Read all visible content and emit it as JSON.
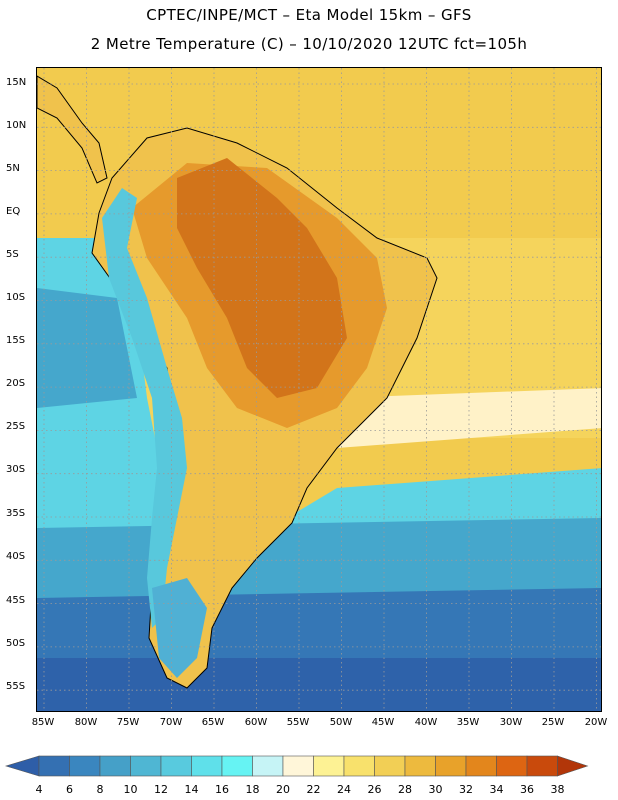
{
  "header": {
    "line1": "CPTEC/INPE/MCT –  Eta Model 15km – GFS",
    "line2": "2 Metre Temperature (C) – 10/10/2020 12UTC fct=105h"
  },
  "axes": {
    "lat_labels": [
      "15N",
      "10N",
      "5N",
      "EQ",
      "5S",
      "10S",
      "15S",
      "20S",
      "25S",
      "30S",
      "35S",
      "40S",
      "45S",
      "50S",
      "55S"
    ],
    "lon_labels": [
      "85W",
      "80W",
      "75W",
      "70W",
      "65W",
      "60W",
      "55W",
      "50W",
      "45W",
      "40W",
      "35W",
      "30W",
      "25W",
      "20W"
    ]
  },
  "colorbar": {
    "labels": [
      "4",
      "6",
      "8",
      "10",
      "12",
      "14",
      "16",
      "18",
      "20",
      "22",
      "24",
      "26",
      "28",
      "30",
      "32",
      "34",
      "36",
      "38"
    ],
    "colors": [
      "#2e5ea8",
      "#3470b2",
      "#3a86bf",
      "#45a0c8",
      "#4fb6d3",
      "#58cade",
      "#5fe0ea",
      "#66f3f3",
      "#c6f4f6",
      "#fff6d9",
      "#fdf294",
      "#f8e16c",
      "#f2cf55",
      "#edba3e",
      "#e8a22a",
      "#e3861c",
      "#dd6512",
      "#c94a0c",
      "#b23609"
    ]
  },
  "map": {
    "colors": {
      "ocean_warm": "#f5d45c",
      "ocean_north": "#f2cb4e",
      "ocean_pale": "#fff2c8",
      "ocean_mid": "#5ed4e4",
      "ocean_cool": "#45a7cc",
      "ocean_cold": "#3577b6",
      "ocean_deep": "#2e62aa",
      "land_hot": "#d2741a",
      "land_warm": "#e69a2c",
      "land_mild": "#f0c24c",
      "andes": "#58c8dc",
      "patagonia": "#50b0d4"
    }
  }
}
